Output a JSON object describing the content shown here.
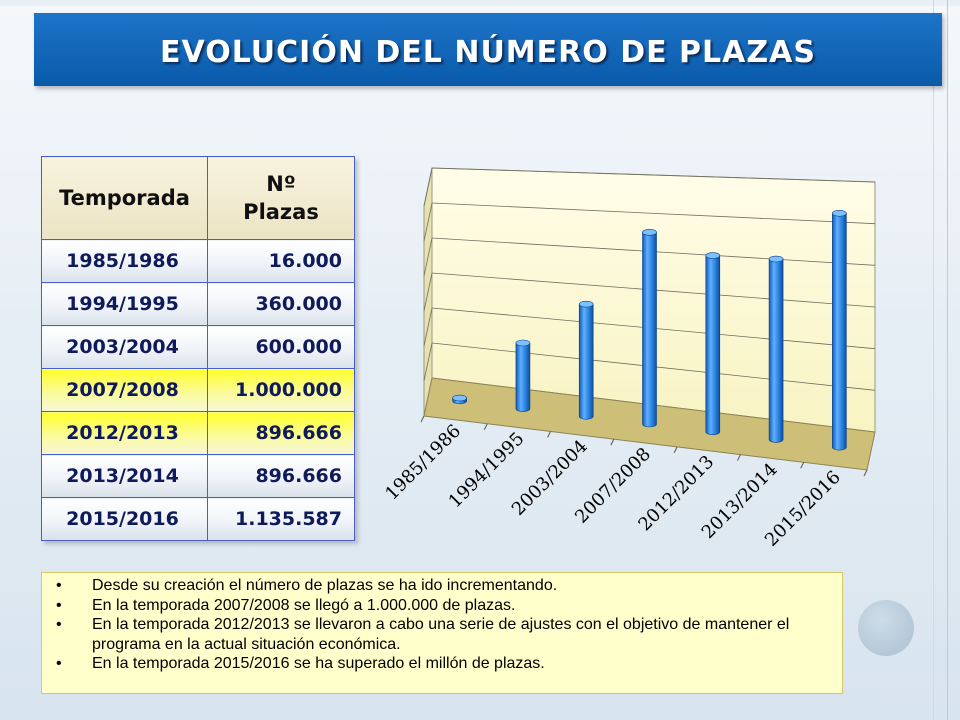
{
  "title": "EVOLUCIÓN DEL NÚMERO DE PLAZAS",
  "table": {
    "headers": {
      "season": "Temporada",
      "places_line1": "Nº",
      "places_line2": "Plazas"
    },
    "rows": [
      {
        "season": "1985/1986",
        "places": "16.000",
        "highlight": false
      },
      {
        "season": "1994/1995",
        "places": "360.000",
        "highlight": false
      },
      {
        "season": "2003/2004",
        "places": "600.000",
        "highlight": false
      },
      {
        "season": "2007/2008",
        "places": "1.000.000",
        "highlight": true
      },
      {
        "season": "2012/2013",
        "places": "896.666",
        "highlight": true
      },
      {
        "season": "2013/2014",
        "places": "896.666",
        "highlight": false
      },
      {
        "season": "2015/2016",
        "places": "1.135.587",
        "highlight": false
      }
    ]
  },
  "chart_data": {
    "type": "bar",
    "style": "3d-cylinder",
    "categories": [
      "1985/1986",
      "1994/1995",
      "2003/2004",
      "2007/2008",
      "2012/2013",
      "2013/2014",
      "2015/2016"
    ],
    "values": [
      16000,
      360000,
      600000,
      1000000,
      896666,
      896666,
      1135587
    ],
    "ylim": [
      0,
      1200000
    ],
    "y_tick_labels_visible": false,
    "grid": true,
    "legend": "none",
    "colors": {
      "bar": "#2f86e0",
      "wall": "#fdfbd6",
      "floor": "#cdbf77"
    }
  },
  "notes": [
    "Desde su creación el número de plazas se ha ido incrementando.",
    "En la temporada 2007/2008 se llegó a 1.000.000 de plazas.",
    "En la temporada 2012/2013 se llevaron a cabo una serie de ajustes con el objetivo de mantener el programa en la actual situación económica.",
    "En la temporada 2015/2016 se ha  superado el millón de plazas."
  ],
  "bullet_char": "•"
}
